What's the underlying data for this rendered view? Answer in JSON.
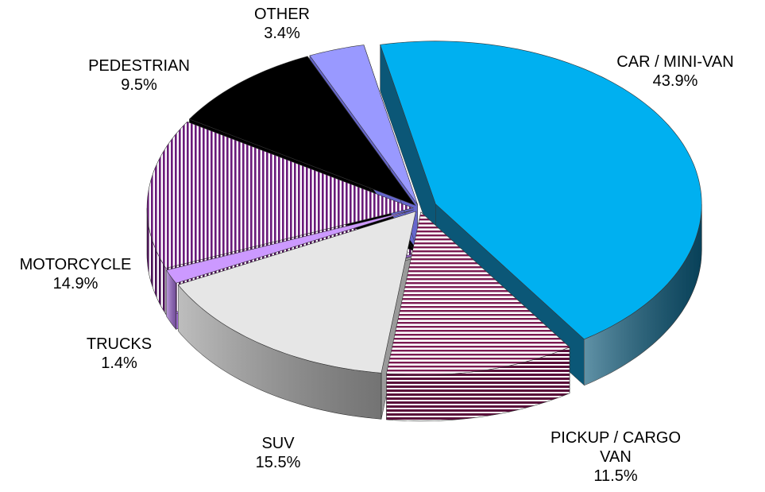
{
  "chart_data": {
    "type": "pie",
    "categories": [
      "CAR / MINI-VAN",
      "PICKUP / CARGO VAN",
      "SUV",
      "TRUCKS",
      "MOTORCYCLE",
      "PEDESTRIAN",
      "OTHER"
    ],
    "values": [
      43.9,
      11.5,
      15.5,
      1.4,
      14.9,
      9.5,
      3.4
    ],
    "value_labels": [
      "43.9%",
      "11.5%",
      "15.5%",
      "1.4%",
      "14.9%",
      "9.5%",
      "3.4%"
    ],
    "colors": [
      "#00b0f0",
      "#7b1b52",
      "#e6e6e6",
      "#cc99ff",
      "#6a1b7a",
      "#000000",
      "#9999ff"
    ],
    "side_colors": [
      "#0b5777",
      "#5a0f3a",
      "#9a9a9a",
      "#9966cc",
      "#4b0f57",
      "#000000",
      "#6666cc"
    ],
    "hatch": [
      null,
      "horizontal",
      null,
      null,
      "vertical",
      null,
      null
    ]
  }
}
